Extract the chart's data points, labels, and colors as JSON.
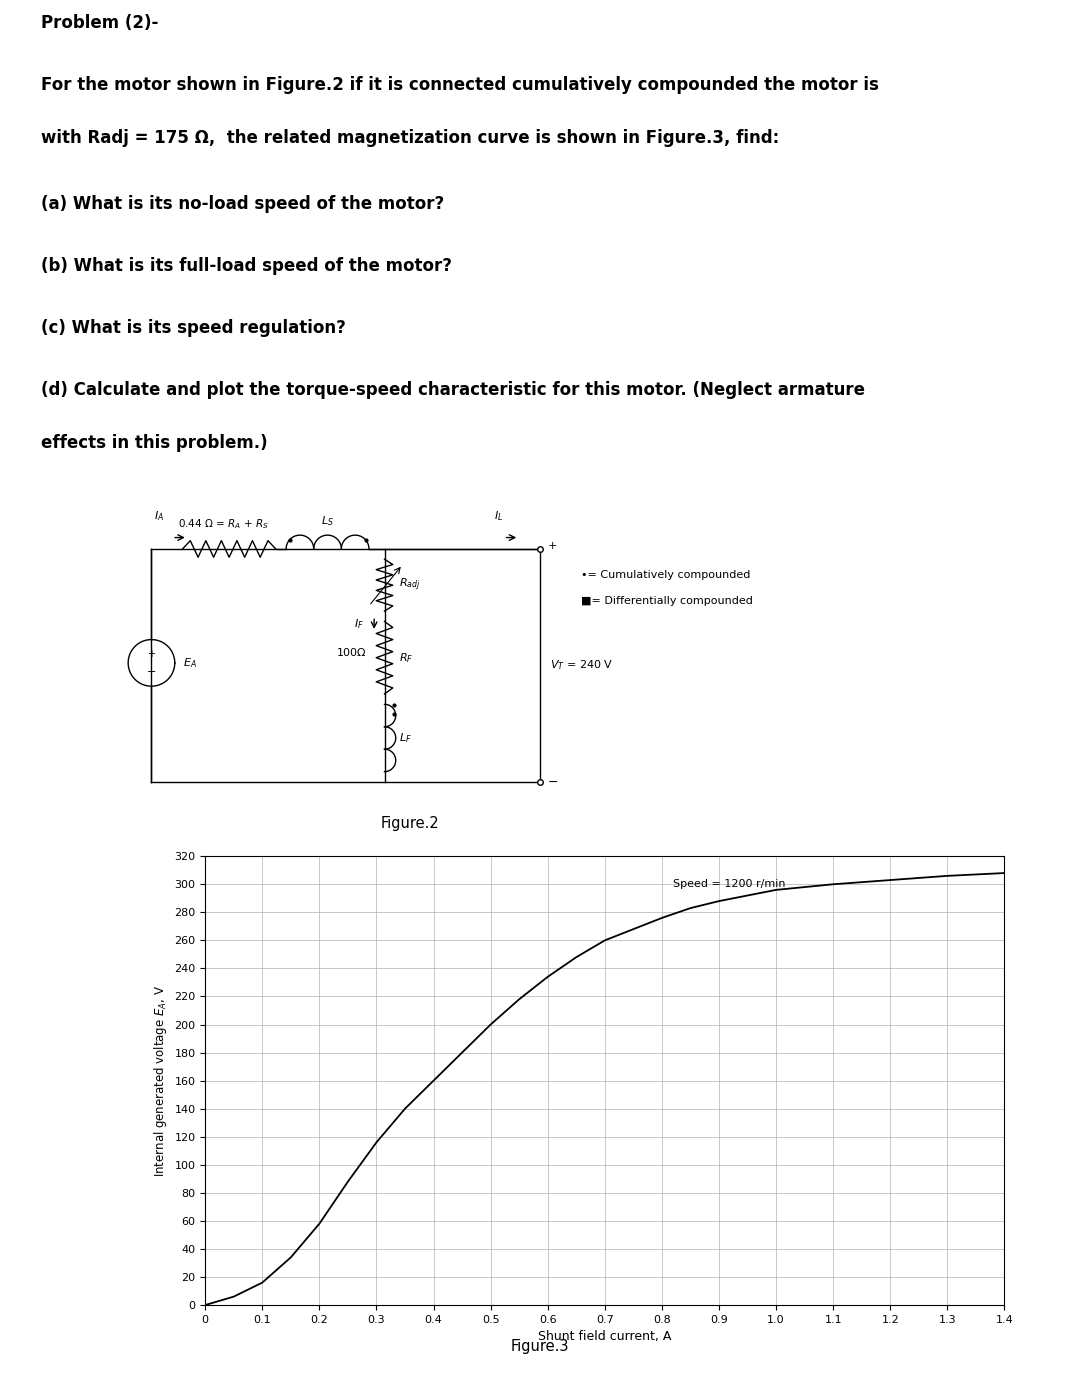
{
  "title_line": "Problem (2)-",
  "para1_line1": "For the motor shown in Figure.2 if it is connected cumulatively compounded the motor is",
  "para1_line2": "with Radj = 175 Ω,  the related magnetization curve is shown in Figure.3, find:",
  "qa": "(a) What is its no-load speed of the motor?",
  "qb": "(b) What is its full-load speed of the motor?",
  "qc": "(c) What is its speed regulation?",
  "qd_line1": "(d) Calculate and plot the torque-speed characteristic for this motor. (Neglect armature",
  "qd_line2": "effects in this problem.)",
  "fig2_label": "Figure.2",
  "fig3_label": "Figure.3",
  "legend_circ": "•= Cumulatively compounded",
  "legend_sq": "■= Differentially compounded",
  "xlabel": "Shunt field current, A",
  "ylabel": "Internal generated voltage $E_A$, V",
  "speed_label": "Speed = 1200 r/min",
  "ylim": [
    0,
    320
  ],
  "xlim": [
    0,
    1.4
  ],
  "yticks": [
    0,
    20,
    40,
    60,
    80,
    100,
    120,
    140,
    160,
    180,
    200,
    220,
    240,
    260,
    280,
    300,
    320
  ],
  "xticks": [
    0,
    0.1,
    0.2,
    0.3,
    0.4,
    0.5,
    0.6,
    0.7,
    0.8,
    0.9,
    1.0,
    1.1,
    1.2,
    1.3,
    1.4
  ],
  "xtick_labels": [
    "0",
    "0.1",
    "0.2",
    "0.3",
    "0.4",
    "0.5",
    "0.6",
    "0.7",
    "0.8",
    "0.9",
    "1.0",
    "1.1",
    "1.2",
    "1.3",
    "1.4"
  ],
  "curve_x": [
    0,
    0.05,
    0.1,
    0.15,
    0.2,
    0.25,
    0.3,
    0.35,
    0.4,
    0.45,
    0.5,
    0.55,
    0.6,
    0.65,
    0.7,
    0.75,
    0.8,
    0.85,
    0.9,
    1.0,
    1.1,
    1.2,
    1.3,
    1.4
  ],
  "curve_y": [
    0,
    6,
    16,
    34,
    58,
    88,
    116,
    140,
    160,
    180,
    200,
    218,
    234,
    248,
    260,
    268,
    276,
    283,
    288,
    296,
    300,
    303,
    306,
    308
  ],
  "background": "#ffffff",
  "text_color": "#000000",
  "grid_color": "#b0b0b0",
  "curve_color": "#000000"
}
